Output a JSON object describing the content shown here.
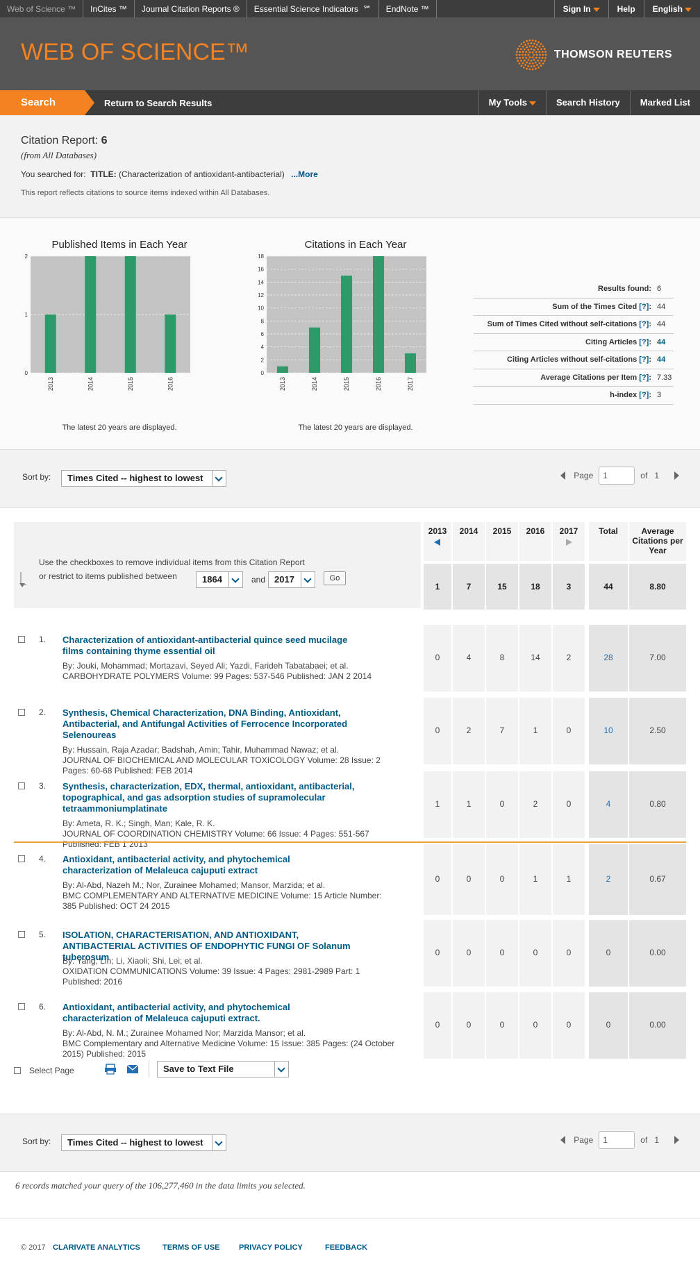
{
  "topbar": {
    "links": [
      "Web of Science ™",
      "InCites ™",
      "Journal Citation Reports ®",
      "Essential Science Indicators  ℠",
      "EndNote ™"
    ],
    "right": {
      "sign_in": "Sign In",
      "help": "Help",
      "english": "English"
    }
  },
  "header": {
    "logo": "WEB OF SCIENCE™",
    "brand": "THOMSON REUTERS"
  },
  "nav": {
    "search": "Search",
    "return": "Return to Search Results",
    "my_tools": "My Tools",
    "history": "Search History",
    "marked": "Marked List"
  },
  "summary": {
    "title": "Citation Report: ",
    "count": "6",
    "from": "(from All Databases)",
    "searched_prefix": "You searched for:",
    "searched_field": "TITLE:",
    "searched_value": "(Characterization of antioxidant-antibacterial)",
    "more": "...More",
    "note": "This report reflects citations to source items indexed within All Databases."
  },
  "chart_data": [
    {
      "type": "bar",
      "title": "Published Items in Each Year",
      "categories": [
        "2013",
        "2014",
        "2015",
        "2016"
      ],
      "values": [
        1,
        2,
        2,
        1
      ],
      "ylim": [
        0,
        2
      ],
      "yticks": [
        0,
        1,
        2
      ],
      "caption": "The latest 20 years are displayed.",
      "color": "#2e9a6a"
    },
    {
      "type": "bar",
      "title": "Citations in Each Year",
      "categories": [
        "2013",
        "2014",
        "2015",
        "2016",
        "2017"
      ],
      "values": [
        1,
        7,
        15,
        18,
        3
      ],
      "ylim": [
        0,
        18
      ],
      "yticks": [
        0,
        2,
        4,
        6,
        8,
        10,
        12,
        14,
        16,
        18
      ],
      "caption": "The latest 20 years are displayed.",
      "color": "#2e9a6a"
    }
  ],
  "stats": [
    {
      "label": "Results found:",
      "value": "6",
      "q": "",
      "link": false
    },
    {
      "label": "Sum of the Times Cited",
      "value": "44",
      "q": "[?]",
      "link": false
    },
    {
      "label": "Sum of Times Cited without self-citations",
      "value": "44",
      "q": "[?]",
      "link": false
    },
    {
      "label": "Citing Articles",
      "value": "44",
      "q": "[?]",
      "link": true
    },
    {
      "label": "Citing Articles without self-citations",
      "value": "44",
      "q": "[?]",
      "link": true
    },
    {
      "label": "Average Citations per Item",
      "value": "7.33",
      "q": "[?]",
      "link": false
    },
    {
      "label": "h-index",
      "value": "3",
      "q": "[?]",
      "link": false
    }
  ],
  "sort": {
    "label": "Sort by:",
    "value": "Times Cited -- highest to lowest"
  },
  "pager": {
    "page": "Page",
    "value": "1",
    "of": "of",
    "total": "1"
  },
  "table": {
    "instr1": "Use the checkboxes to remove individual items from this Citation Report",
    "instr2": "or restrict to items published between",
    "from_year": "1864",
    "and": "and",
    "to_year": "2017",
    "go": "Go",
    "headers": [
      "2013",
      "2014",
      "2015",
      "2016",
      "2017",
      "Total",
      "Average Citations per Year"
    ],
    "totals": [
      "1",
      "7",
      "15",
      "18",
      "3",
      "44",
      "8.80"
    ]
  },
  "records": [
    {
      "num": "1.",
      "title": "Characterization of antioxidant-antibacterial quince seed mucilage films containing thyme essential oil",
      "authors": "By: Jouki, Mohammad; Mortazavi, Seyed Ali; Yazdi, Farideh Tabatabaei; et al.",
      "source": "CARBOHYDRATE POLYMERS  Volume: 99   Pages: 537-546   Published: JAN 2 2014",
      "counts": [
        "0",
        "4",
        "8",
        "14",
        "2",
        "28",
        "7.00"
      ]
    },
    {
      "num": "2.",
      "title": "Synthesis, Chemical Characterization, DNA Binding, Antioxidant, Antibacterial, and Antifungal Activities of Ferrocence Incorporated Selenoureas",
      "authors": "By: Hussain, Raja Azadar; Badshah, Amin; Tahir, Muhammad Nawaz; et al.",
      "source": "JOURNAL OF BIOCHEMICAL AND MOLECULAR TOXICOLOGY  Volume: 28   Issue: 2   Pages: 60-68   Published: FEB 2014",
      "counts": [
        "0",
        "2",
        "7",
        "1",
        "0",
        "10",
        "2.50"
      ]
    },
    {
      "num": "3.",
      "title": "Synthesis, characterization, EDX, thermal, antioxidant, antibacterial, topographical, and gas adsorption studies of supramolecular tetraammoniumplatinate",
      "authors": "By: Ameta, R. K.; Singh, Man; Kale, R. K.",
      "source": "JOURNAL OF COORDINATION CHEMISTRY  Volume: 66   Issue: 4   Pages: 551-567   Published: FEB 1 2013",
      "counts": [
        "1",
        "1",
        "0",
        "2",
        "0",
        "4",
        "0.80"
      ]
    },
    {
      "num": "4.",
      "title": "Antioxidant, antibacterial activity, and phytochemical characterization of Melaleuca cajuputi extract",
      "authors": "By: Al-Abd, Nazeh M.; Nor, Zurainee Mohamed; Mansor, Marzida; et al.",
      "source": "BMC COMPLEMENTARY AND ALTERNATIVE MEDICINE  Volume: 15   Article Number: 385   Published: OCT 24 2015",
      "counts": [
        "0",
        "0",
        "0",
        "1",
        "1",
        "2",
        "0.67"
      ]
    },
    {
      "num": "5.",
      "title": "ISOLATION, CHARACTERISATION, AND ANTIOXIDANT, ANTIBACTERIAL ACTIVITIES OF ENDOPHYTIC FUNGI OF Solanum tuberosum",
      "authors": "By: Yang, Lin; Li, Xiaoli; Shi, Lei; et al.",
      "source": "OXIDATION COMMUNICATIONS  Volume: 39   Issue: 4   Pages: 2981-2989   Part: 1   Published: 2016",
      "counts": [
        "0",
        "0",
        "0",
        "0",
        "0",
        "0",
        "0.00"
      ]
    },
    {
      "num": "6.",
      "title": "Antioxidant, antibacterial activity, and phytochemical characterization of Melaleuca cajuputi extract.",
      "authors": "By: Al-Abd, N. M.; Zurainee Mohamed Nor; Marzida Mansor; et al.",
      "source": "BMC Complementary and Alternative Medicine  Volume: 15   Issue: 385   Pages: (24 October 2015)   Published: 2015",
      "counts": [
        "0",
        "0",
        "0",
        "0",
        "0",
        "0",
        "0.00"
      ]
    }
  ],
  "actions": {
    "select_page": "Select Page",
    "save": "Save to Text File"
  },
  "records_note": "6 records matched your query of the 106,277,460 in the data limits you selected.",
  "footer": {
    "copyright": "© 2017",
    "clarivate": "CLARIVATE ANALYTICS",
    "terms": "TERMS OF USE",
    "privacy": "PRIVACY POLICY",
    "feedback": "FEEDBACK"
  }
}
